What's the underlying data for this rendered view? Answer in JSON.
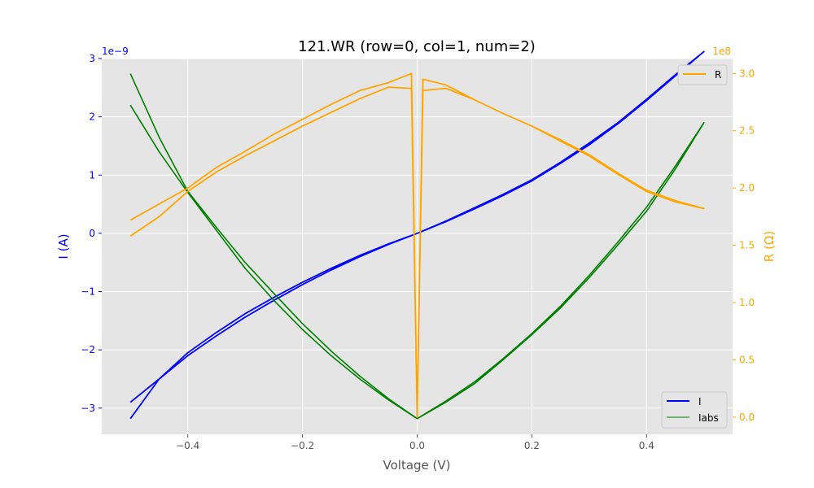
{
  "chart_data": {
    "type": "line",
    "title": "121.WR (row=0, col=1, num=2)",
    "xlabel": "Voltage (V)",
    "ylabel_left": "I (A)",
    "ylabel_right": "R (Ω)",
    "left_scale_label": "1e−9",
    "right_scale_label": "1e8",
    "xlim": [
      -0.55,
      0.55
    ],
    "ylim_left": [
      -3.45,
      3.0
    ],
    "ylim_right": [
      -0.15,
      3.13
    ],
    "x_ticks": [
      -0.4,
      -0.2,
      0.0,
      0.2,
      0.4
    ],
    "x_tick_labels": [
      "−0.4",
      "−0.2",
      "0.0",
      "0.2",
      "0.4"
    ],
    "y_left_ticks": [
      -3,
      -2,
      -1,
      0,
      1,
      2,
      3
    ],
    "y_left_tick_labels": [
      "−3",
      "−2",
      "−1",
      "0",
      "1",
      "2",
      "3"
    ],
    "y_right_ticks": [
      0.0,
      0.5,
      1.0,
      1.5,
      2.0,
      2.5,
      3.0
    ],
    "y_right_tick_labels": [
      "0.0",
      "0.5",
      "1.0",
      "1.5",
      "2.0",
      "2.5",
      "3.0"
    ],
    "grid": true,
    "legend_left": {
      "placement": "lower-right",
      "entries": [
        "I",
        "Iabs"
      ]
    },
    "legend_right": {
      "placement": "upper-right",
      "entries": [
        "R"
      ]
    },
    "colors": {
      "I": "#0000ff",
      "Iabs": "#008000",
      "R": "#ffa500",
      "left_axis": "#0000ff",
      "right_axis": "#ffa500"
    },
    "series": [
      {
        "name": "I",
        "axis": "left",
        "x": [
          -0.5,
          -0.45,
          -0.4,
          -0.35,
          -0.3,
          -0.25,
          -0.2,
          -0.15,
          -0.1,
          -0.05,
          0.0,
          0.05,
          0.1,
          0.15,
          0.2,
          0.25,
          0.3,
          0.35,
          0.4,
          0.45,
          0.5,
          0.45,
          0.4,
          0.35,
          0.3,
          0.25,
          0.2,
          0.15,
          0.1,
          0.05,
          0.0,
          -0.05,
          -0.1,
          -0.15,
          -0.2,
          -0.25,
          -0.3,
          -0.35,
          -0.4,
          -0.45,
          -0.5
        ],
        "values": [
          -3.18,
          -2.5,
          -2.05,
          -1.7,
          -1.38,
          -1.1,
          -0.84,
          -0.6,
          -0.38,
          -0.18,
          0.0,
          0.2,
          0.42,
          0.65,
          0.9,
          1.2,
          1.52,
          1.88,
          2.28,
          2.7,
          3.12,
          2.72,
          2.3,
          1.9,
          1.55,
          1.22,
          0.92,
          0.67,
          0.44,
          0.21,
          0.0,
          -0.19,
          -0.4,
          -0.63,
          -0.88,
          -1.15,
          -1.44,
          -1.76,
          -2.1,
          -2.5,
          -2.9
        ]
      },
      {
        "name": "Iabs",
        "axis": "left",
        "x": [
          -0.5,
          -0.45,
          -0.4,
          -0.35,
          -0.3,
          -0.25,
          -0.2,
          -0.15,
          -0.1,
          -0.05,
          0.0,
          0.05,
          0.1,
          0.15,
          0.2,
          0.25,
          0.3,
          0.35,
          0.4,
          0.45,
          0.5,
          0.45,
          0.4,
          0.35,
          0.3,
          0.25,
          0.2,
          0.15,
          0.1,
          0.05,
          0.0,
          -0.05,
          -0.1,
          -0.15,
          -0.2,
          -0.25,
          -0.3,
          -0.35,
          -0.4,
          -0.45,
          -0.5
        ],
        "values": [
          2.2,
          1.4,
          0.7,
          0.05,
          -0.6,
          -1.15,
          -1.65,
          -2.1,
          -2.5,
          -2.86,
          -3.18,
          -2.88,
          -2.55,
          -2.15,
          -1.72,
          -1.25,
          -0.72,
          -0.15,
          0.45,
          1.15,
          1.9,
          1.1,
          0.38,
          -0.2,
          -0.76,
          -1.28,
          -1.74,
          -2.17,
          -2.58,
          -2.9,
          -3.18,
          -2.84,
          -2.45,
          -2.02,
          -1.55,
          -1.03,
          -0.5,
          0.1,
          0.72,
          1.65,
          2.74
        ]
      },
      {
        "name": "R",
        "axis": "right",
        "x": [
          -0.5,
          -0.45,
          -0.4,
          -0.35,
          -0.3,
          -0.25,
          -0.2,
          -0.15,
          -0.1,
          -0.05,
          -0.01,
          0.0,
          0.01,
          0.05,
          0.1,
          0.15,
          0.2,
          0.25,
          0.3,
          0.35,
          0.4,
          0.45,
          0.5,
          0.45,
          0.4,
          0.35,
          0.3,
          0.25,
          0.2,
          0.15,
          0.1,
          0.05,
          0.01,
          0.0,
          -0.01,
          -0.05,
          -0.1,
          -0.15,
          -0.2,
          -0.25,
          -0.3,
          -0.35,
          -0.4,
          -0.45,
          -0.5
        ],
        "values": [
          1.58,
          1.75,
          1.97,
          2.14,
          2.28,
          2.41,
          2.54,
          2.66,
          2.78,
          2.88,
          2.87,
          0.0,
          2.85,
          2.87,
          2.77,
          2.65,
          2.54,
          2.42,
          2.29,
          2.13,
          1.98,
          1.89,
          1.82,
          1.88,
          1.97,
          2.12,
          2.28,
          2.41,
          2.54,
          2.65,
          2.77,
          2.9,
          2.95,
          0.0,
          3.0,
          2.92,
          2.85,
          2.73,
          2.6,
          2.47,
          2.32,
          2.18,
          2.0,
          1.86,
          1.72
        ]
      }
    ]
  }
}
